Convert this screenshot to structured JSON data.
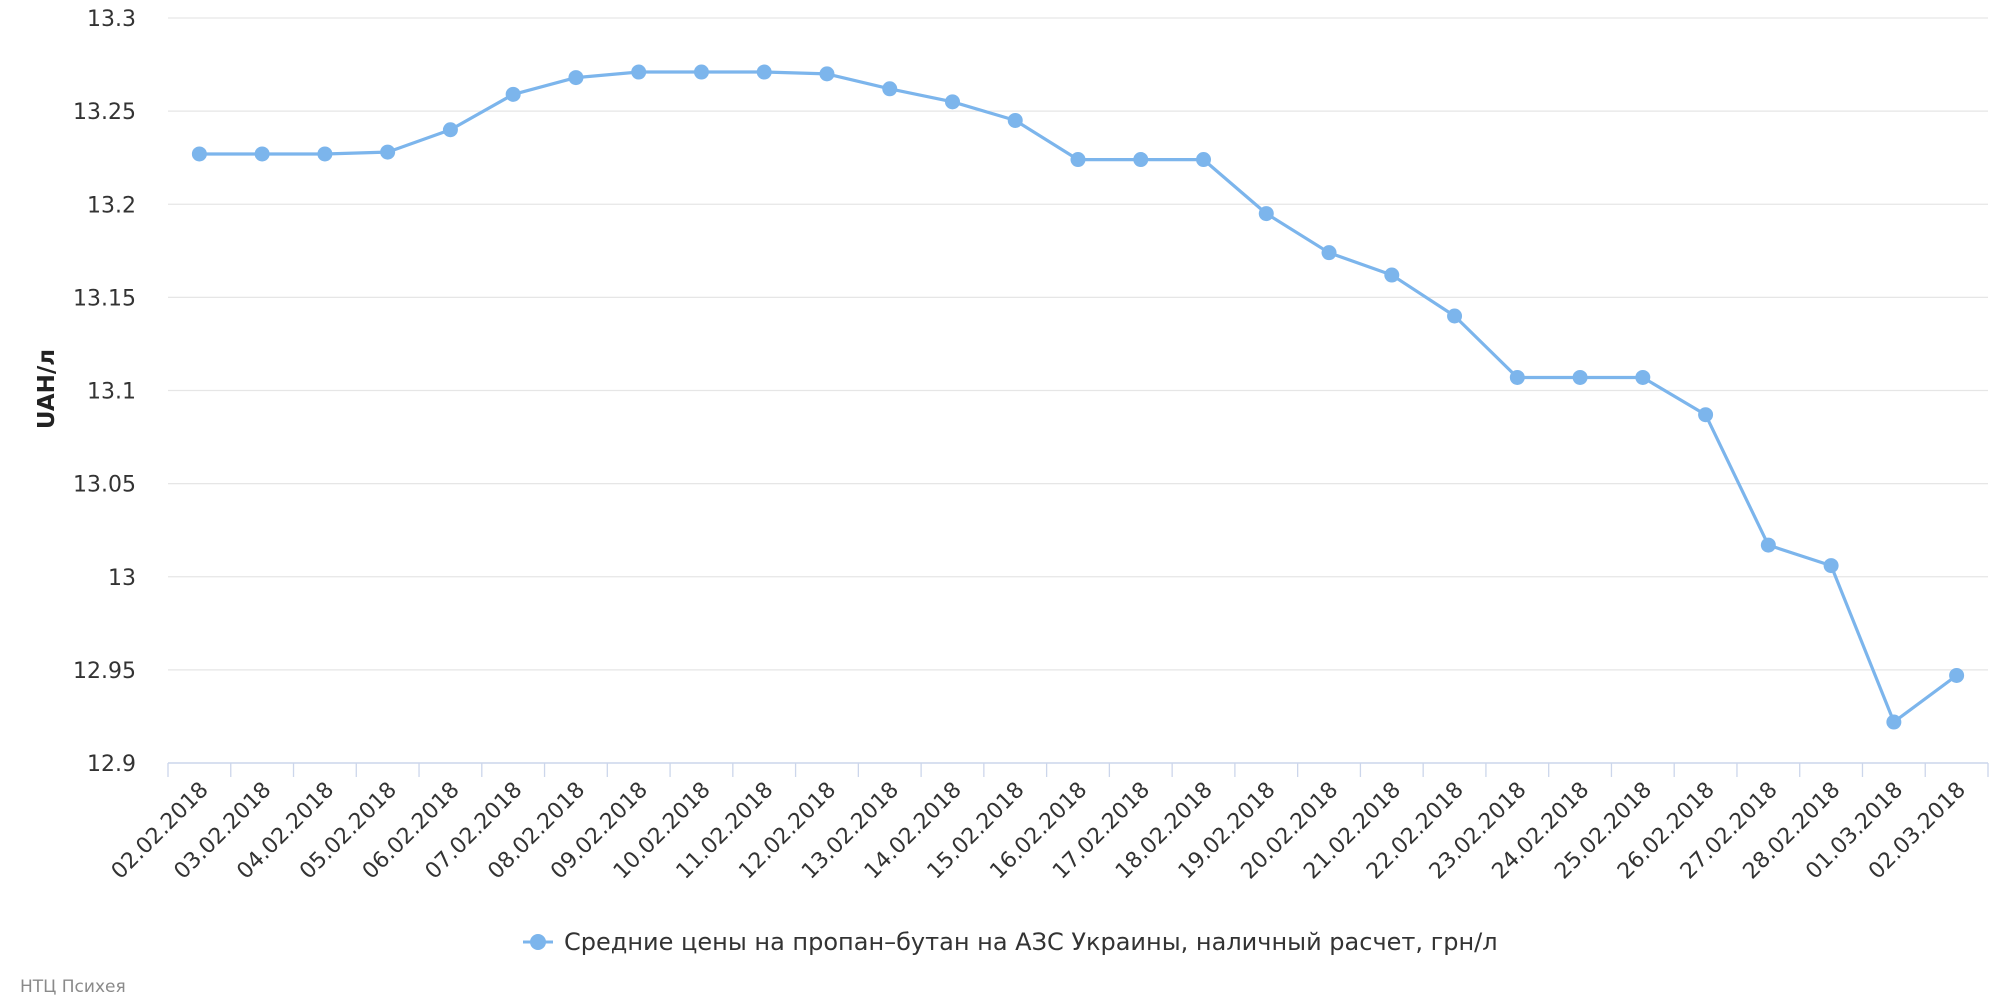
{
  "chart_data": {
    "type": "line",
    "title": "",
    "xlabel": "",
    "ylabel": "UAH/л",
    "ylim": [
      12.9,
      13.3
    ],
    "y_ticks": [
      12.9,
      12.95,
      13,
      13.05,
      13.1,
      13.15,
      13.2,
      13.25,
      13.3
    ],
    "y_tick_labels": [
      "12.9",
      "12.95",
      "13",
      "13.05",
      "13.1",
      "13.15",
      "13.2",
      "13.25",
      "13.3"
    ],
    "grid": true,
    "legend_position": "bottom-center",
    "categories": [
      "02.02.2018",
      "03.02.2018",
      "04.02.2018",
      "05.02.2018",
      "06.02.2018",
      "07.02.2018",
      "08.02.2018",
      "09.02.2018",
      "10.02.2018",
      "11.02.2018",
      "12.02.2018",
      "13.02.2018",
      "14.02.2018",
      "15.02.2018",
      "16.02.2018",
      "17.02.2018",
      "18.02.2018",
      "19.02.2018",
      "20.02.2018",
      "21.02.2018",
      "22.02.2018",
      "23.02.2018",
      "24.02.2018",
      "25.02.2018",
      "26.02.2018",
      "27.02.2018",
      "28.02.2018",
      "01.03.2018",
      "02.03.2018"
    ],
    "series": [
      {
        "name": "Средние цены на пропан–бутан на АЗС Украины, наличный расчет, грн/л",
        "color": "#7cb5ec",
        "values": [
          13.227,
          13.227,
          13.227,
          13.228,
          13.24,
          13.259,
          13.268,
          13.271,
          13.271,
          13.271,
          13.27,
          13.262,
          13.255,
          13.245,
          13.224,
          13.224,
          13.224,
          13.195,
          13.174,
          13.162,
          13.14,
          13.107,
          13.107,
          13.107,
          13.087,
          13.017,
          13.006,
          12.922,
          12.947
        ]
      }
    ]
  },
  "credit": "НТЦ Психея",
  "colors": {
    "grid": "#e6e6e6",
    "axis": "#ccd6eb",
    "series": "#7cb5ec"
  }
}
